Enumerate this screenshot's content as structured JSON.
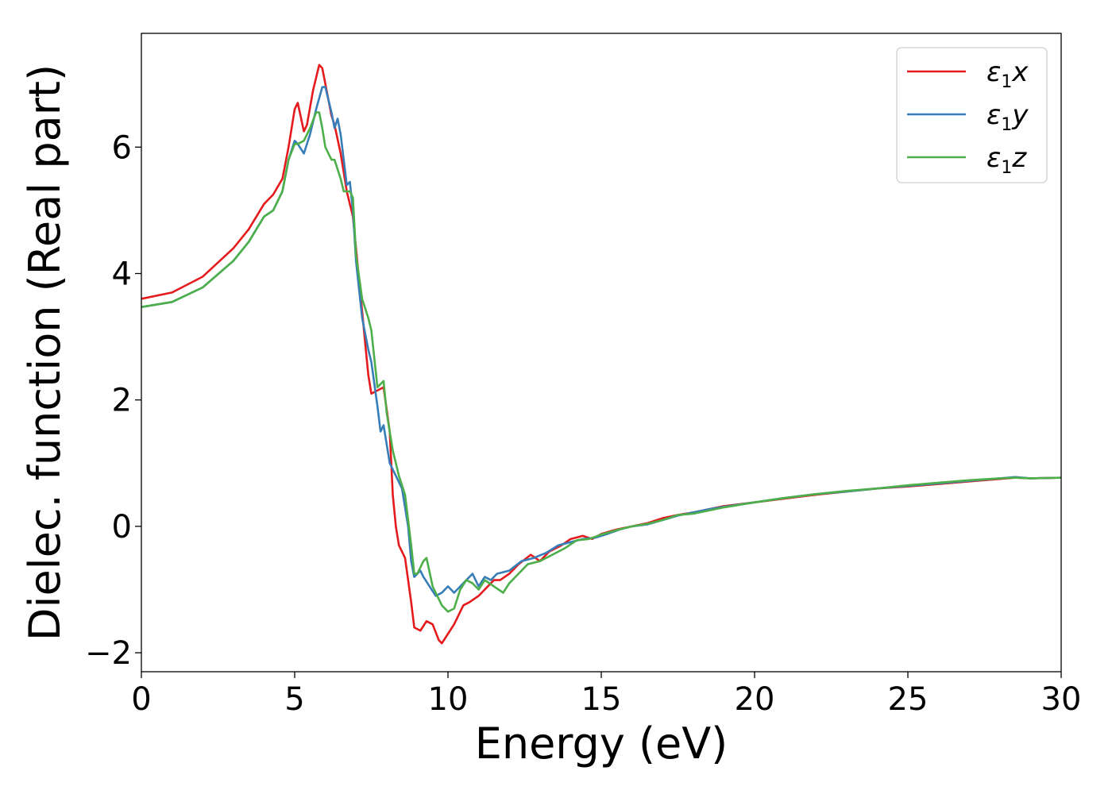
{
  "chart_data": {
    "type": "line",
    "xlabel": "Energy (eV)",
    "ylabel": "Dielec. function (Real part)",
    "xlim": [
      0,
      30
    ],
    "ylim": [
      -2.3,
      7.8
    ],
    "xticks": [
      0,
      5,
      10,
      15,
      20,
      25,
      30
    ],
    "xtick_labels": [
      "0",
      "5",
      "10",
      "15",
      "20",
      "25",
      "30"
    ],
    "yticks": [
      -2,
      0,
      2,
      4,
      6
    ],
    "ytick_labels": [
      "−2",
      "0",
      "2",
      "4",
      "6"
    ],
    "grid": false,
    "legend_position": "top-right",
    "series": [
      {
        "name": "ε1x",
        "legend_main": "ε",
        "legend_sub": "1",
        "legend_var": "x",
        "color": "#e41a1c",
        "x": [
          0,
          1,
          2,
          3,
          3.5,
          4,
          4.3,
          4.6,
          4.8,
          5.0,
          5.1,
          5.3,
          5.4,
          5.6,
          5.8,
          5.9,
          6.0,
          6.2,
          6.3,
          6.5,
          6.7,
          6.9,
          7.0,
          7.2,
          7.4,
          7.5,
          7.7,
          7.9,
          8.1,
          8.2,
          8.3,
          8.4,
          8.6,
          8.8,
          8.9,
          9.1,
          9.3,
          9.5,
          9.7,
          9.8,
          10.0,
          10.2,
          10.5,
          10.7,
          11.0,
          11.3,
          11.5,
          11.7,
          12.0,
          12.3,
          12.7,
          13.0,
          13.3,
          13.7,
          14.0,
          14.4,
          14.7,
          15.0,
          15.5,
          16.0,
          16.5,
          17.0,
          17.5,
          18.0,
          18.5,
          19.0,
          20.0,
          21.0,
          22.0,
          23.0,
          24.0,
          25.0,
          26.0,
          27.0,
          28.0,
          28.5,
          29.0,
          30.0
        ],
        "y": [
          3.6,
          3.7,
          3.95,
          4.4,
          4.7,
          5.1,
          5.25,
          5.5,
          6.0,
          6.6,
          6.7,
          6.25,
          6.35,
          6.9,
          7.3,
          7.25,
          7.0,
          6.5,
          6.35,
          5.9,
          5.3,
          4.9,
          4.4,
          3.4,
          2.4,
          2.1,
          2.15,
          2.2,
          1.5,
          0.5,
          0.0,
          -0.3,
          -0.5,
          -1.2,
          -1.6,
          -1.65,
          -1.5,
          -1.55,
          -1.8,
          -1.85,
          -1.7,
          -1.55,
          -1.25,
          -1.2,
          -1.1,
          -0.95,
          -0.85,
          -0.85,
          -0.75,
          -0.6,
          -0.45,
          -0.55,
          -0.4,
          -0.3,
          -0.2,
          -0.15,
          -0.2,
          -0.12,
          -0.05,
          0.0,
          0.05,
          0.13,
          0.18,
          0.22,
          0.27,
          0.32,
          0.38,
          0.44,
          0.5,
          0.55,
          0.6,
          0.63,
          0.67,
          0.71,
          0.75,
          0.77,
          0.76,
          0.77
        ]
      },
      {
        "name": "ε1y",
        "legend_main": "ε",
        "legend_sub": "1",
        "legend_var": "y",
        "color": "#377eb8",
        "x": [
          0,
          1,
          2,
          3,
          3.5,
          4,
          4.3,
          4.6,
          4.8,
          5.0,
          5.1,
          5.3,
          5.5,
          5.7,
          5.9,
          6.0,
          6.2,
          6.3,
          6.4,
          6.5,
          6.6,
          6.7,
          6.8,
          6.9,
          7.0,
          7.2,
          7.4,
          7.5,
          7.7,
          7.8,
          7.9,
          8.1,
          8.3,
          8.5,
          8.7,
          8.8,
          8.9,
          9.1,
          9.2,
          9.4,
          9.6,
          9.8,
          10.0,
          10.2,
          10.4,
          10.6,
          10.8,
          11.0,
          11.2,
          11.4,
          11.6,
          12.0,
          12.4,
          12.8,
          13.2,
          13.6,
          14.0,
          14.4,
          14.8,
          15.2,
          15.6,
          16.0,
          16.5,
          17.0,
          17.5,
          18.0,
          18.5,
          19.0,
          20.0,
          21.0,
          22.0,
          23.0,
          24.0,
          25.0,
          26.0,
          27.0,
          28.0,
          28.5,
          29.0,
          30.0
        ],
        "y": [
          3.47,
          3.55,
          3.78,
          4.2,
          4.5,
          4.9,
          5.0,
          5.3,
          5.8,
          6.1,
          6.05,
          5.9,
          6.2,
          6.6,
          6.95,
          6.95,
          6.55,
          6.3,
          6.45,
          6.2,
          5.8,
          5.4,
          5.45,
          5.0,
          4.2,
          3.3,
          2.8,
          2.6,
          1.9,
          1.5,
          1.6,
          1.0,
          0.8,
          0.6,
          0.0,
          -0.55,
          -0.8,
          -0.7,
          -0.8,
          -0.95,
          -1.1,
          -1.05,
          -0.95,
          -1.05,
          -0.95,
          -0.85,
          -0.75,
          -0.95,
          -0.8,
          -0.85,
          -0.75,
          -0.7,
          -0.55,
          -0.5,
          -0.42,
          -0.3,
          -0.25,
          -0.2,
          -0.18,
          -0.12,
          -0.05,
          0.0,
          0.03,
          0.1,
          0.17,
          0.22,
          0.27,
          0.31,
          0.38,
          0.45,
          0.51,
          0.55,
          0.6,
          0.64,
          0.68,
          0.72,
          0.76,
          0.78,
          0.76,
          0.77
        ]
      },
      {
        "name": "ε1z",
        "legend_main": "ε",
        "legend_sub": "1",
        "legend_var": "z",
        "color": "#4daf4a",
        "x": [
          0,
          1,
          2,
          3,
          3.5,
          4,
          4.3,
          4.6,
          4.8,
          5.0,
          5.1,
          5.3,
          5.5,
          5.7,
          5.8,
          5.9,
          6.0,
          6.2,
          6.3,
          6.5,
          6.6,
          6.8,
          6.9,
          7.0,
          7.2,
          7.4,
          7.5,
          7.7,
          7.9,
          8.0,
          8.2,
          8.4,
          8.6,
          8.8,
          8.9,
          9.0,
          9.2,
          9.3,
          9.5,
          9.7,
          9.8,
          10.0,
          10.2,
          10.4,
          10.6,
          10.8,
          11.0,
          11.2,
          11.5,
          11.8,
          12.0,
          12.3,
          12.6,
          13.0,
          13.4,
          13.8,
          14.2,
          14.6,
          15.0,
          15.5,
          16.0,
          16.5,
          17.0,
          17.5,
          18.0,
          18.5,
          19.0,
          20.0,
          21.0,
          22.0,
          23.0,
          24.0,
          25.0,
          26.0,
          27.0,
          28.0,
          28.5,
          29.0,
          30.0
        ],
        "y": [
          3.47,
          3.55,
          3.78,
          4.2,
          4.5,
          4.9,
          5.0,
          5.3,
          5.8,
          6.05,
          6.05,
          6.1,
          6.3,
          6.55,
          6.55,
          6.3,
          6.0,
          5.8,
          5.8,
          5.5,
          5.3,
          5.3,
          5.2,
          4.3,
          3.6,
          3.3,
          3.1,
          2.2,
          2.3,
          1.8,
          1.2,
          0.8,
          0.5,
          -0.3,
          -0.75,
          -0.75,
          -0.55,
          -0.5,
          -0.95,
          -1.15,
          -1.25,
          -1.35,
          -1.3,
          -1.0,
          -0.85,
          -0.9,
          -1.0,
          -0.85,
          -0.95,
          -1.05,
          -0.9,
          -0.75,
          -0.6,
          -0.55,
          -0.45,
          -0.35,
          -0.22,
          -0.2,
          -0.13,
          -0.06,
          0.0,
          0.04,
          0.1,
          0.18,
          0.2,
          0.25,
          0.3,
          0.38,
          0.45,
          0.51,
          0.56,
          0.6,
          0.65,
          0.69,
          0.73,
          0.76,
          0.77,
          0.76,
          0.77
        ]
      }
    ]
  }
}
